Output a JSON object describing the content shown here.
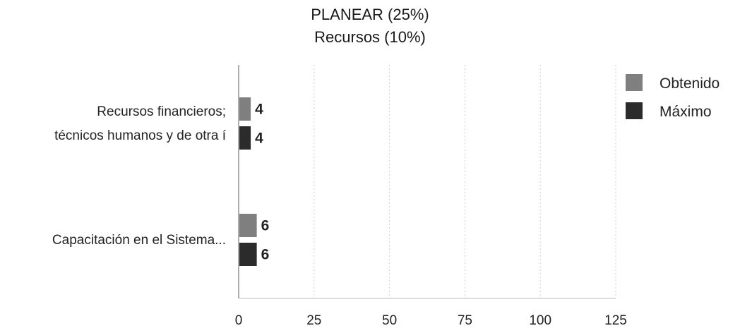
{
  "chart_data": {
    "type": "bar",
    "orientation": "horizontal",
    "title": "PLANEAR (25%)",
    "subtitle": "Recursos (10%)",
    "categories": [
      [
        "Recursos financieros;",
        "técnicos humanos y de otra í"
      ],
      [
        "Capacitación en el Sistema..."
      ]
    ],
    "series": [
      {
        "name": "Obtenido",
        "values": [
          4,
          6
        ],
        "color": "#7f7f7f"
      },
      {
        "name": "Máximo",
        "values": [
          4,
          6
        ],
        "color": "#2b2b2b"
      }
    ],
    "xlim": [
      0,
      125
    ],
    "xticks": [
      0,
      25,
      50,
      75,
      100,
      125
    ],
    "grid": true,
    "legend_position": "top-right",
    "data_labels": true
  }
}
